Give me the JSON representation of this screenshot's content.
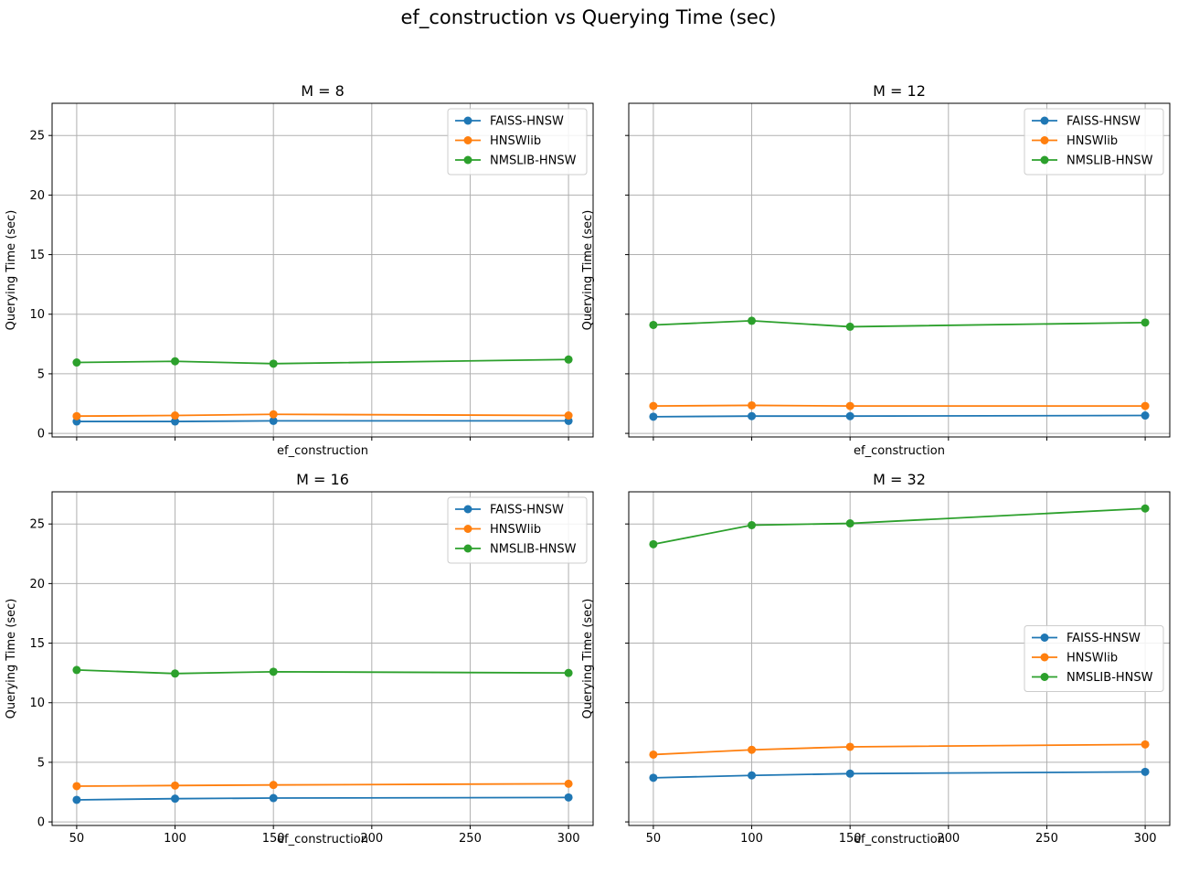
{
  "figure": {
    "title": "ef_construction vs Querying Time (sec)"
  },
  "colors": {
    "FAISS-HNSW": "#1f77b4",
    "HNSWlib": "#ff7f0e",
    "NMSLIB-HNSW": "#2ca02c",
    "grid": "#b0b0b0",
    "axis": "#000000"
  },
  "chart_data": [
    {
      "type": "line",
      "title": "M = 8",
      "xlabel": "ef_construction",
      "ylabel": "Querying Time (sec)",
      "x": [
        50,
        100,
        150,
        300
      ],
      "xticks": [
        50,
        100,
        150,
        200,
        250,
        300
      ],
      "yticks": [
        0,
        5,
        10,
        15,
        20,
        25
      ],
      "xlim": [
        37.5,
        312.5
      ],
      "ylim": [
        -0.3,
        27.7
      ],
      "grid": true,
      "legend_position": "upper right",
      "show_x_tick_labels": false,
      "show_y_tick_labels": true,
      "series": [
        {
          "name": "FAISS-HNSW",
          "values": [
            1.0,
            1.0,
            1.05,
            1.05
          ]
        },
        {
          "name": "HNSWlib",
          "values": [
            1.45,
            1.5,
            1.6,
            1.5
          ]
        },
        {
          "name": "NMSLIB-HNSW",
          "values": [
            5.95,
            6.05,
            5.85,
            6.2
          ]
        }
      ]
    },
    {
      "type": "line",
      "title": "M = 12",
      "xlabel": "ef_construction",
      "ylabel": "Querying Time (sec)",
      "x": [
        50,
        100,
        150,
        300
      ],
      "xticks": [
        50,
        100,
        150,
        200,
        250,
        300
      ],
      "yticks": [
        0,
        5,
        10,
        15,
        20,
        25
      ],
      "xlim": [
        37.5,
        312.5
      ],
      "ylim": [
        -0.3,
        27.7
      ],
      "grid": true,
      "legend_position": "upper right",
      "show_x_tick_labels": false,
      "show_y_tick_labels": false,
      "series": [
        {
          "name": "FAISS-HNSW",
          "values": [
            1.4,
            1.45,
            1.45,
            1.5
          ]
        },
        {
          "name": "HNSWlib",
          "values": [
            2.3,
            2.35,
            2.3,
            2.3
          ]
        },
        {
          "name": "NMSLIB-HNSW",
          "values": [
            9.1,
            9.45,
            8.95,
            9.3
          ]
        }
      ]
    },
    {
      "type": "line",
      "title": "M = 16",
      "xlabel": "ef_construction",
      "ylabel": "Querying Time (sec)",
      "x": [
        50,
        100,
        150,
        300
      ],
      "xticks": [
        50,
        100,
        150,
        200,
        250,
        300
      ],
      "yticks": [
        0,
        5,
        10,
        15,
        20,
        25
      ],
      "xlim": [
        37.5,
        312.5
      ],
      "ylim": [
        -0.3,
        27.7
      ],
      "grid": true,
      "legend_position": "upper right",
      "show_x_tick_labels": true,
      "show_y_tick_labels": true,
      "series": [
        {
          "name": "FAISS-HNSW",
          "values": [
            1.85,
            1.95,
            2.0,
            2.05
          ]
        },
        {
          "name": "HNSWlib",
          "values": [
            3.0,
            3.05,
            3.1,
            3.2
          ]
        },
        {
          "name": "NMSLIB-HNSW",
          "values": [
            12.75,
            12.45,
            12.6,
            12.5
          ]
        }
      ]
    },
    {
      "type": "line",
      "title": "M = 32",
      "xlabel": "ef_construction",
      "ylabel": "Querying Time (sec)",
      "x": [
        50,
        100,
        150,
        300
      ],
      "xticks": [
        50,
        100,
        150,
        200,
        250,
        300
      ],
      "yticks": [
        0,
        5,
        10,
        15,
        20,
        25
      ],
      "xlim": [
        37.5,
        312.5
      ],
      "ylim": [
        -0.3,
        27.7
      ],
      "grid": true,
      "legend_position": "center right",
      "show_x_tick_labels": true,
      "show_y_tick_labels": false,
      "series": [
        {
          "name": "FAISS-HNSW",
          "values": [
            3.7,
            3.9,
            4.05,
            4.2
          ]
        },
        {
          "name": "HNSWlib",
          "values": [
            5.65,
            6.05,
            6.3,
            6.5
          ]
        },
        {
          "name": "NMSLIB-HNSW",
          "values": [
            23.3,
            24.9,
            25.05,
            26.3
          ]
        }
      ]
    }
  ]
}
